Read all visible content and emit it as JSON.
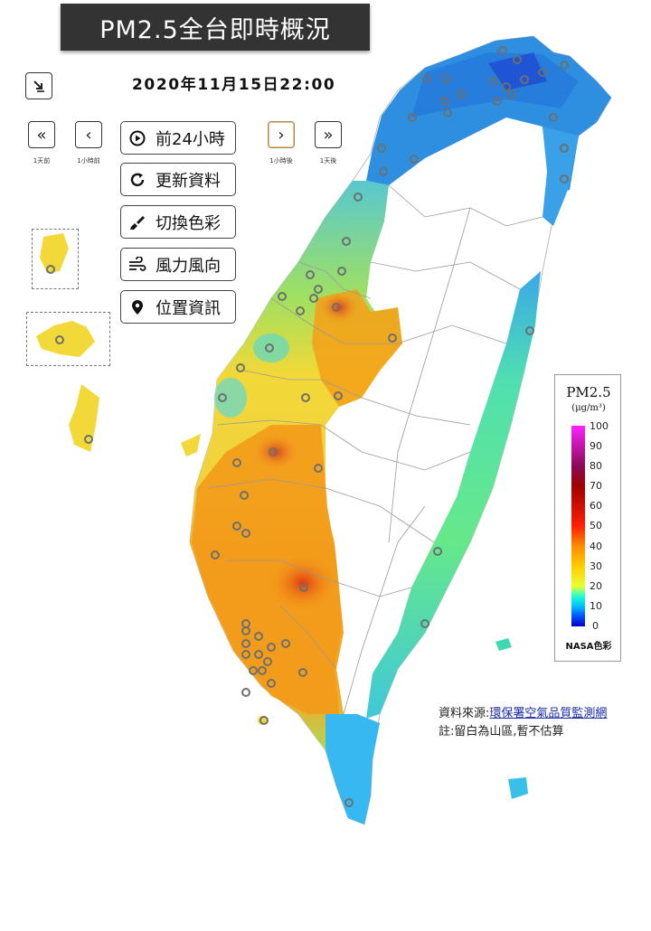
{
  "header": {
    "title": "PM2.5全台即時概況"
  },
  "timestamp": "2020年11月15日22:00",
  "nav": {
    "back_day_caption": "1天前",
    "back_hour_caption": "1小時前",
    "fwd_hour_caption": "1小時後",
    "fwd_day_caption": "1天後"
  },
  "menu": {
    "past24": "前24小時",
    "refresh": "更新資料",
    "colors": "切換色彩",
    "wind": "風力風向",
    "location": "位置資訊"
  },
  "legend": {
    "title": "PM2.5",
    "unit": "(μg/m³)",
    "ticks": [
      "100",
      "90",
      "80",
      "70",
      "60",
      "50",
      "40",
      "30",
      "20",
      "10",
      "0"
    ],
    "palette_label": "NASA色彩"
  },
  "source": {
    "prefix": "資料來源:",
    "link": "環保署空氣品質監測網",
    "note": "註:留白為山區,暫不估算"
  },
  "colors": {
    "title_bg": "#333333",
    "north": "#2e8fe0",
    "west_yellow": "#f2d838",
    "west_orange": "#f39a1a",
    "hotspot": "#e84a10",
    "east": "#44d6a0",
    "south_tip": "#35b8ee"
  }
}
